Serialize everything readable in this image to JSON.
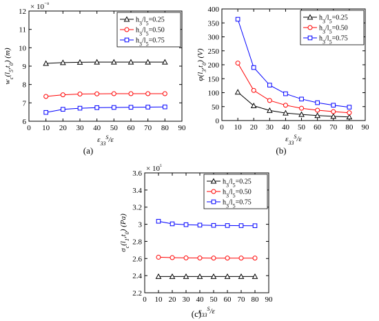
{
  "chart_data": [
    {
      "id": "a",
      "type": "line",
      "caption": "(a)",
      "ylabel": "w_c(l_5,t_0) (m)",
      "xlabel": "ε33S/ε",
      "multiplier": "× 10⁻⁸",
      "xlim": [
        0,
        90
      ],
      "ylim": [
        6,
        12
      ],
      "xticks": [
        "0",
        "10",
        "20",
        "30",
        "40",
        "50",
        "60",
        "70",
        "80",
        "90"
      ],
      "yticks": [
        "6",
        "7",
        "8",
        "9",
        "10",
        "11",
        "12"
      ],
      "legend_position": "top-right",
      "x": [
        10,
        20,
        30,
        40,
        50,
        60,
        70,
        80
      ],
      "series": [
        {
          "name": "h3/l5=0.25",
          "color": "#000000",
          "marker": "triangle",
          "values": [
            9.15,
            9.19,
            9.21,
            9.22,
            9.22,
            9.22,
            9.22,
            9.22
          ]
        },
        {
          "name": "h3/l5=0.50",
          "color": "#ff0000",
          "marker": "circle",
          "values": [
            7.35,
            7.44,
            7.48,
            7.49,
            7.5,
            7.5,
            7.5,
            7.5
          ]
        },
        {
          "name": "h3/l5=0.75",
          "color": "#0000ff",
          "marker": "square",
          "values": [
            6.48,
            6.65,
            6.71,
            6.74,
            6.75,
            6.76,
            6.77,
            6.78
          ]
        }
      ]
    },
    {
      "id": "b",
      "type": "line",
      "caption": "(b)",
      "ylabel": "φ(l_3,t_0) (V)",
      "xlabel": "ε33S/ε",
      "multiplier": "",
      "xlim": [
        0,
        90
      ],
      "ylim": [
        0,
        400
      ],
      "xticks": [
        "0",
        "10",
        "20",
        "30",
        "40",
        "50",
        "60",
        "70",
        "80",
        "90"
      ],
      "yticks": [
        "0",
        "50",
        "100",
        "150",
        "200",
        "250",
        "300",
        "350",
        "400"
      ],
      "legend_position": "top-right",
      "x": [
        10,
        20,
        30,
        40,
        50,
        60,
        70,
        80
      ],
      "series": [
        {
          "name": "h3/l5=0.25",
          "color": "#000000",
          "marker": "triangle",
          "values": [
            102,
            53,
            36,
            27,
            22,
            18,
            15,
            13
          ]
        },
        {
          "name": "h3/l5=0.50",
          "color": "#ff0000",
          "marker": "circle",
          "values": [
            206,
            108,
            72,
            55,
            44,
            37,
            32,
            28
          ]
        },
        {
          "name": "h3/l5=0.75",
          "color": "#0000ff",
          "marker": "square",
          "values": [
            363,
            190,
            127,
            96,
            77,
            64,
            55,
            48
          ]
        }
      ]
    },
    {
      "id": "c",
      "type": "line",
      "caption": "(c)",
      "ylabel": "σ_c(l_1,t_0) (Pa)",
      "xlabel": "ε33S/ε",
      "multiplier": "× 10⁵",
      "xlim": [
        0,
        90
      ],
      "ylim": [
        2.2,
        3.6
      ],
      "xticks": [
        "0",
        "10",
        "20",
        "30",
        "40",
        "50",
        "60",
        "70",
        "80",
        "90"
      ],
      "yticks": [
        "2.2",
        "2.4",
        "2.6",
        "2.8",
        "3",
        "3.2",
        "3.4",
        "3.6"
      ],
      "legend_position": "top-right",
      "x": [
        10,
        20,
        30,
        40,
        50,
        60,
        70,
        80
      ],
      "series": [
        {
          "name": "h3/l5=0.25",
          "color": "#000000",
          "marker": "triangle",
          "values": [
            2.39,
            2.39,
            2.39,
            2.39,
            2.39,
            2.39,
            2.39,
            2.39
          ]
        },
        {
          "name": "h3/l5=0.50",
          "color": "#ff0000",
          "marker": "circle",
          "values": [
            2.615,
            2.61,
            2.607,
            2.606,
            2.605,
            2.605,
            2.605,
            2.605
          ]
        },
        {
          "name": "h3/l5=0.75",
          "color": "#0000ff",
          "marker": "square",
          "values": [
            3.035,
            3.005,
            2.995,
            2.99,
            2.987,
            2.985,
            2.984,
            2.983
          ]
        }
      ]
    }
  ]
}
